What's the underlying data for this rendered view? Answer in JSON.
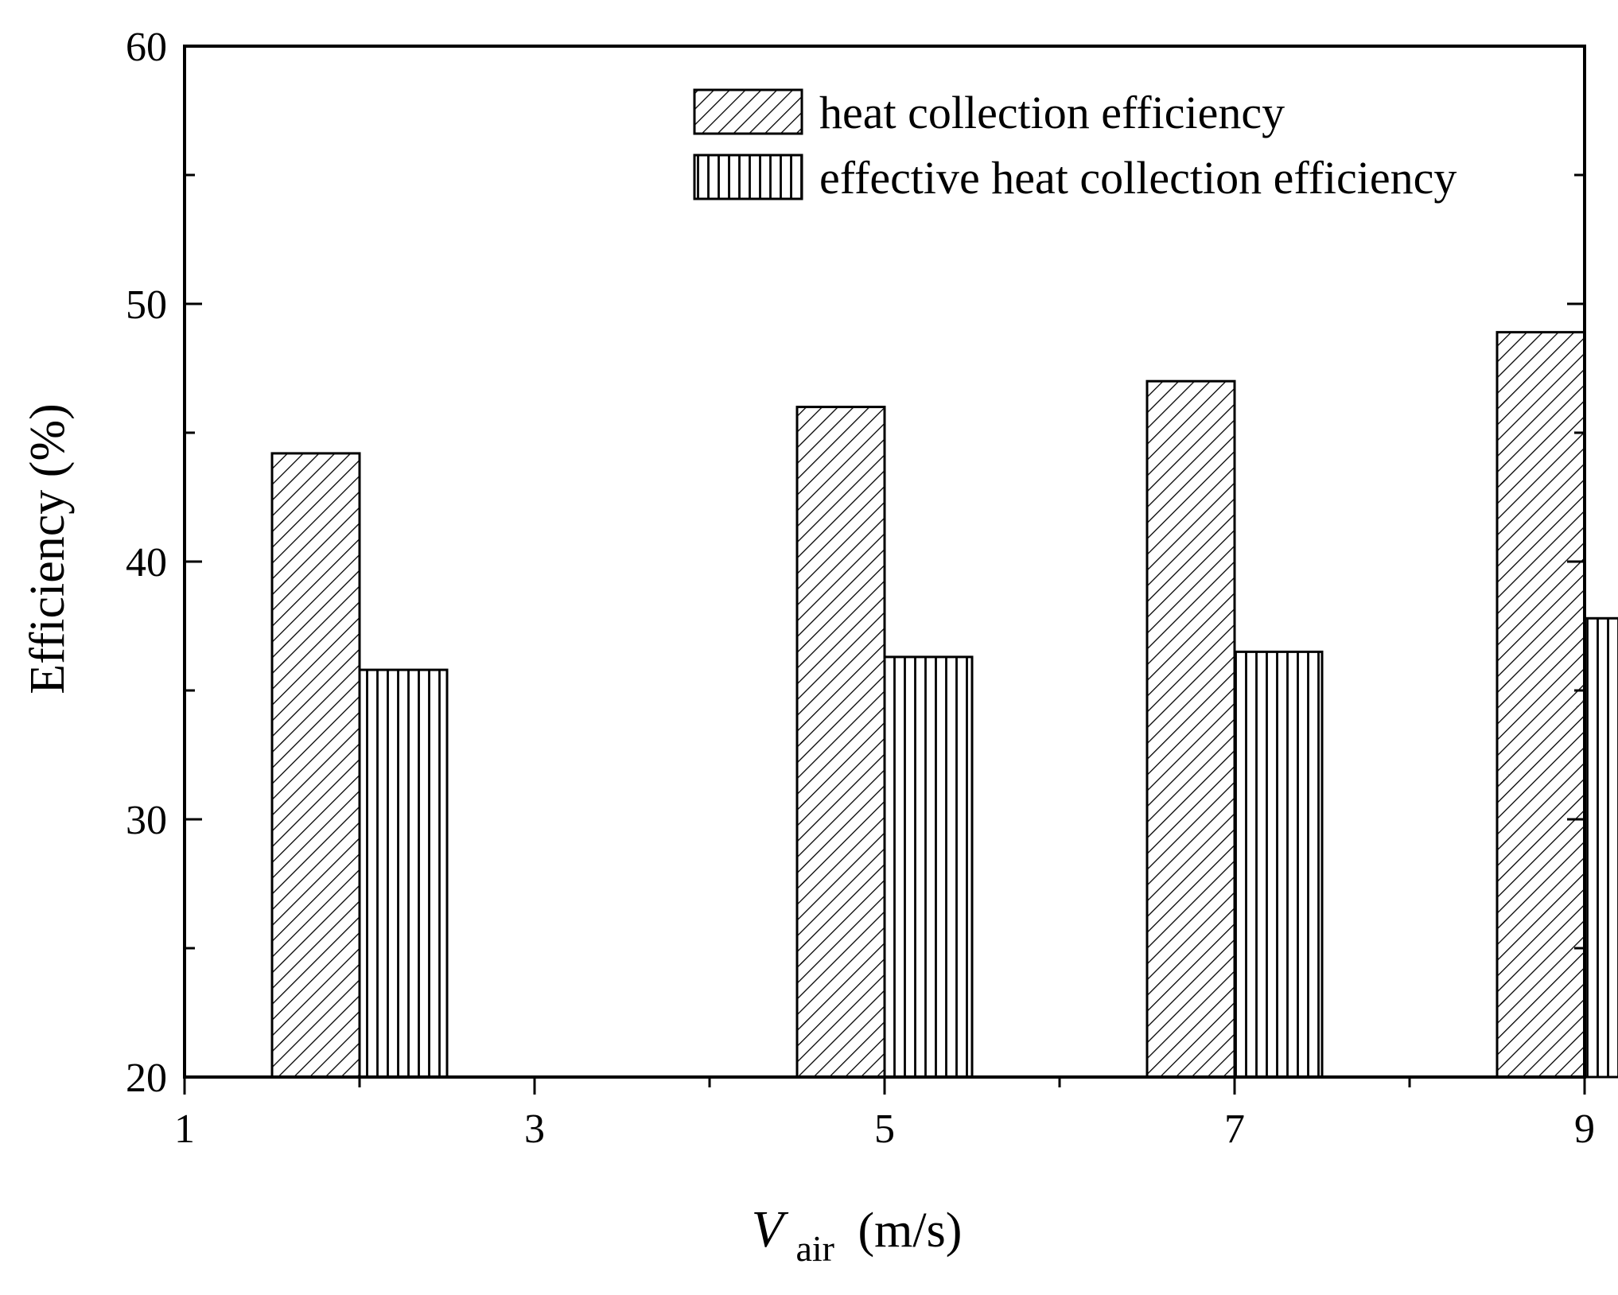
{
  "chart_data": {
    "type": "bar",
    "title": "",
    "x": [
      2,
      5,
      7,
      9
    ],
    "series": [
      {
        "name": "heat collection efficiency",
        "pattern": "diagonal-hatch",
        "values": [
          44.2,
          46.0,
          47.0,
          48.9
        ]
      },
      {
        "name": "effective heat collection efficiency",
        "pattern": "vertical-hatch",
        "values": [
          35.8,
          36.3,
          36.5,
          37.8
        ]
      }
    ],
    "xlabel": {
      "main": "V",
      "subscript": "air",
      "unit": "(m/s)"
    },
    "ylabel": "Efficiency (%)",
    "xlim": [
      1,
      9
    ],
    "ylim": [
      20,
      60
    ],
    "xticks": [
      1,
      3,
      5,
      7,
      9
    ],
    "xminor": [
      2,
      4,
      6,
      8
    ],
    "yticks": [
      20,
      30,
      40,
      50,
      60
    ],
    "yminor": [
      25,
      35,
      45,
      55
    ],
    "legend_position": "top-right",
    "grid": false,
    "colors": {
      "stroke": "#000000",
      "background": "#ffffff"
    }
  }
}
